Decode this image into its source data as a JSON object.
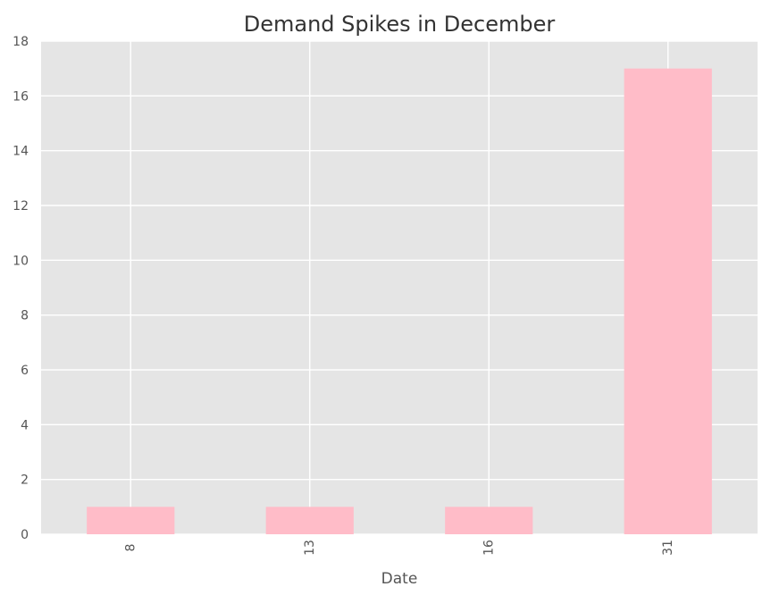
{
  "chart_data": {
    "type": "bar",
    "title": "Demand Spikes in December",
    "xlabel": "Date",
    "ylabel": "",
    "categories": [
      "8",
      "13",
      "16",
      "31"
    ],
    "values": [
      1,
      1,
      1,
      17
    ],
    "ylim": [
      0,
      18
    ],
    "yticks": [
      0,
      2,
      4,
      6,
      8,
      10,
      12,
      14,
      16,
      18
    ],
    "grid": true,
    "legend": "none",
    "colors": {
      "bar": "#ffbcc8",
      "plot_background": "#e5e5e5",
      "grid": "#ffffff",
      "text": "#555555"
    }
  }
}
